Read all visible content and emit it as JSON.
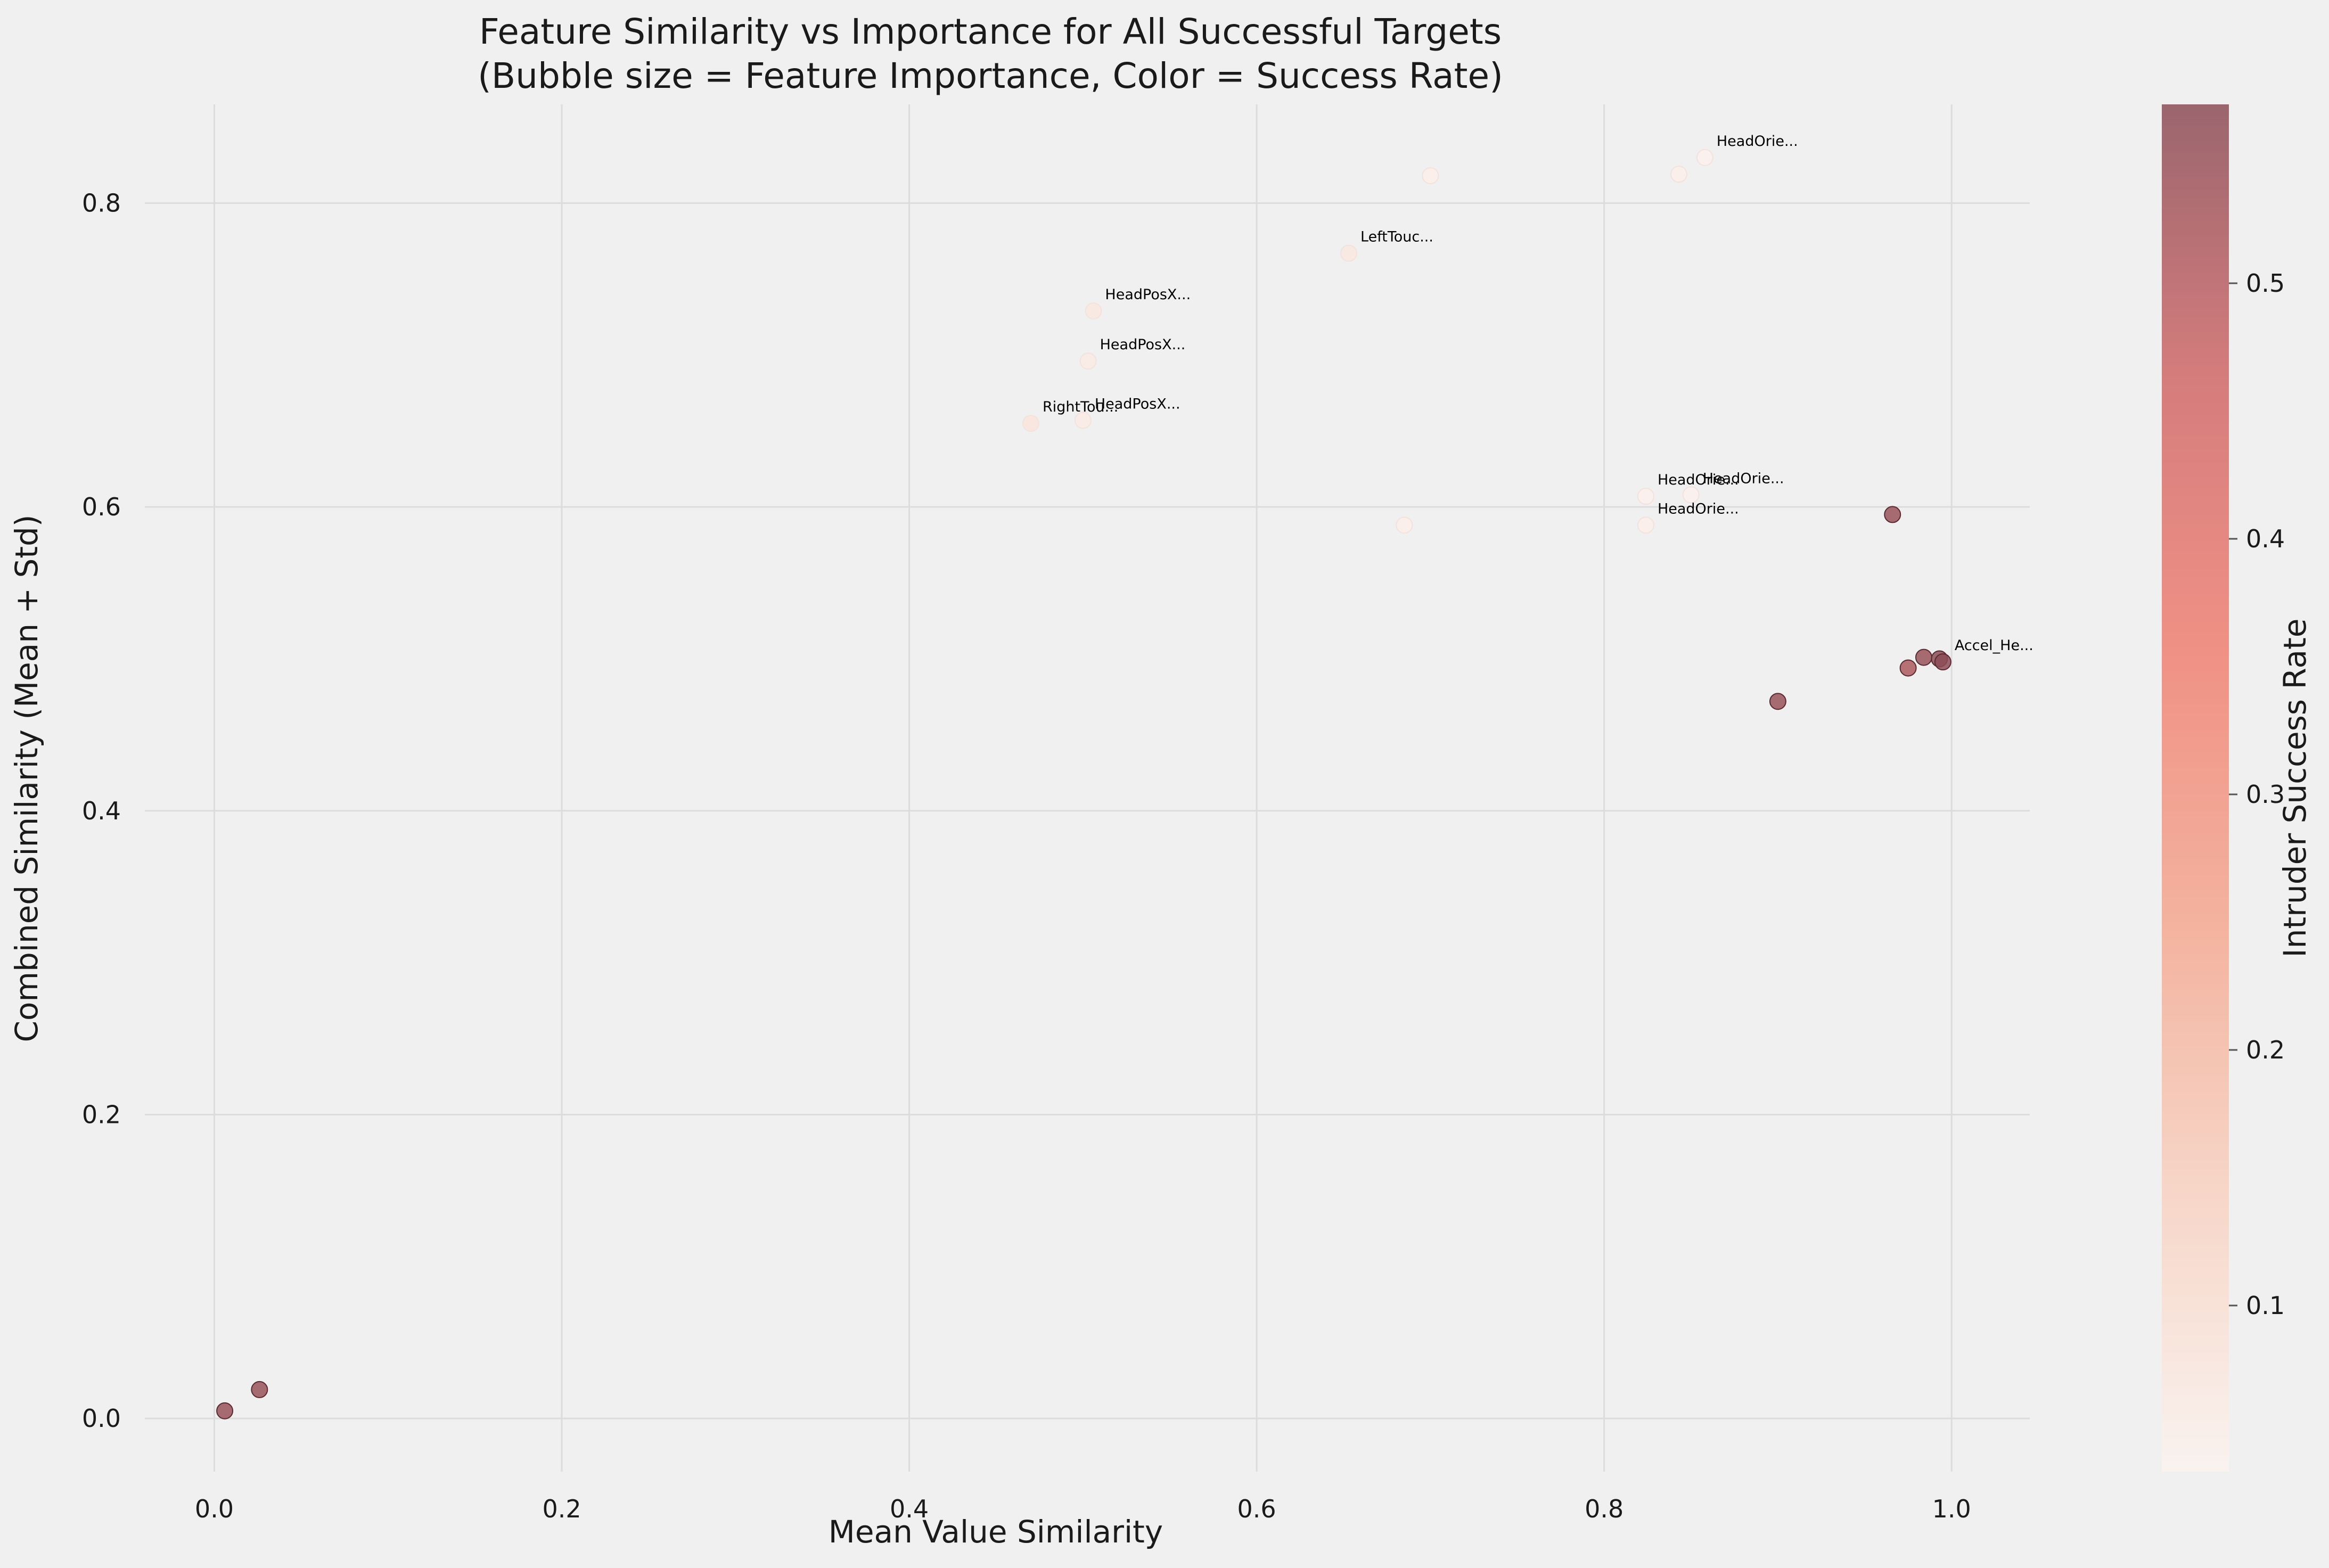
{
  "chart_data": {
    "type": "scatter",
    "title_lines": [
      "Feature Similarity vs Importance for All Successful Targets",
      "(Bubble size = Feature Importance, Color = Success Rate)"
    ],
    "xlabel": "Mean Value Similarity",
    "ylabel": "Combined Similarity (Mean + Std)",
    "xlim": [
      -0.04,
      1.045
    ],
    "ylim": [
      -0.035,
      0.865
    ],
    "xticks": [
      0.0,
      0.2,
      0.4,
      0.6,
      0.8,
      1.0
    ],
    "xtick_labels": [
      "0.0",
      "0.2",
      "0.4",
      "0.6",
      "0.8",
      "1.0"
    ],
    "yticks": [
      0.0,
      0.2,
      0.4,
      0.6,
      0.8
    ],
    "ytick_labels": [
      "0.0",
      "0.2",
      "0.4",
      "0.6",
      "0.8"
    ],
    "grid": true,
    "colorbar": {
      "label": "Intruder Success Rate",
      "range": [
        0.035,
        0.57
      ],
      "ticks": [
        0.1,
        0.2,
        0.3,
        0.4,
        0.5
      ],
      "tick_labels": [
        "0.1",
        "0.2",
        "0.3",
        "0.4",
        "0.5"
      ],
      "colors": [
        "#fbf3ef",
        "#f8d2c2",
        "#f4a890",
        "#f08072",
        "#d06868",
        "#8c4d57"
      ]
    },
    "points": [
      {
        "x": 0.006,
        "y": 0.005,
        "rate": 0.55,
        "label": ""
      },
      {
        "x": 0.026,
        "y": 0.019,
        "rate": 0.55,
        "label": ""
      },
      {
        "x": 0.47,
        "y": 0.655,
        "rate": 0.08,
        "label": "RightTou..."
      },
      {
        "x": 0.5,
        "y": 0.657,
        "rate": 0.06,
        "label": "HeadPosX..."
      },
      {
        "x": 0.503,
        "y": 0.696,
        "rate": 0.06,
        "label": "HeadPosX..."
      },
      {
        "x": 0.506,
        "y": 0.729,
        "rate": 0.07,
        "label": "HeadPosX..."
      },
      {
        "x": 0.653,
        "y": 0.767,
        "rate": 0.07,
        "label": "LeftTouc..."
      },
      {
        "x": 0.685,
        "y": 0.588,
        "rate": 0.05,
        "label": ""
      },
      {
        "x": 0.7,
        "y": 0.818,
        "rate": 0.05,
        "label": ""
      },
      {
        "x": 0.824,
        "y": 0.588,
        "rate": 0.05,
        "label": "HeadOrie..."
      },
      {
        "x": 0.824,
        "y": 0.607,
        "rate": 0.04,
        "label": "HeadOrie..."
      },
      {
        "x": 0.85,
        "y": 0.608,
        "rate": 0.04,
        "label": "HeadOrie..."
      },
      {
        "x": 0.843,
        "y": 0.819,
        "rate": 0.05,
        "label": ""
      },
      {
        "x": 0.858,
        "y": 0.83,
        "rate": 0.04,
        "label": "HeadOrie..."
      },
      {
        "x": 0.9,
        "y": 0.472,
        "rate": 0.55,
        "label": ""
      },
      {
        "x": 0.966,
        "y": 0.595,
        "rate": 0.55,
        "label": ""
      },
      {
        "x": 0.975,
        "y": 0.494,
        "rate": 0.52,
        "label": ""
      },
      {
        "x": 0.984,
        "y": 0.501,
        "rate": 0.55,
        "label": ""
      },
      {
        "x": 0.993,
        "y": 0.5,
        "rate": 0.57,
        "label": ""
      },
      {
        "x": 0.995,
        "y": 0.498,
        "rate": 0.57,
        "label": "Accel_He..."
      }
    ]
  }
}
